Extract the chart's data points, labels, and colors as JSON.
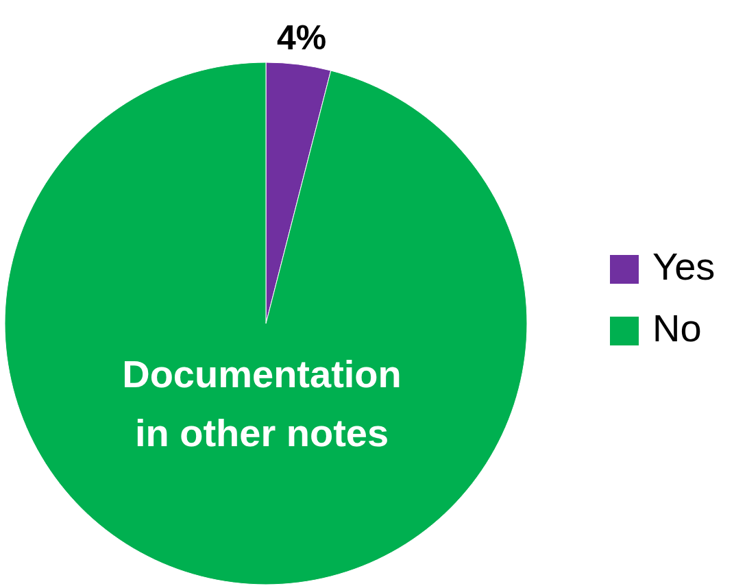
{
  "chart_data": {
    "type": "pie",
    "title": "Documentation in other notes",
    "categories": [
      "Yes",
      "No"
    ],
    "values": [
      4,
      96
    ],
    "colors": [
      "#7030a0",
      "#00b050"
    ],
    "value_labels": [
      "4%",
      null
    ],
    "legend": "right"
  }
}
